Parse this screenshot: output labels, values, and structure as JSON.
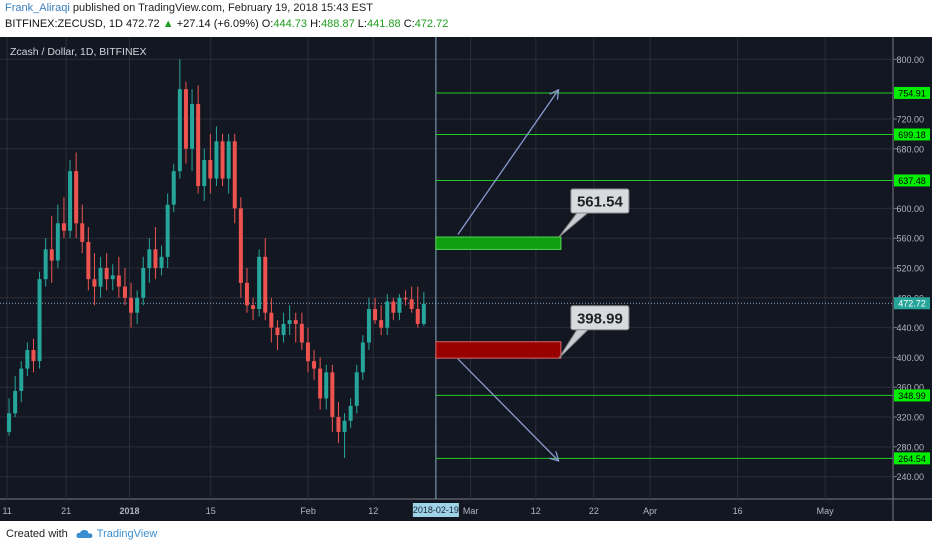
{
  "header": {
    "author": "Frank_Aliraqi",
    "published_text": "published on TradingView.com, February 19, 2018 15:43 EST",
    "symbol_line": "BITFINEX:ZECUSD, 1D",
    "last": "472.72",
    "change": "+27.14 (+6.09%)",
    "o_label": "O:",
    "o": "444.73",
    "h_label": "H:",
    "h": "488.87",
    "l_label": "L:",
    "l": "441.88",
    "c_label": "C:",
    "c": "472.72"
  },
  "footer": {
    "created_with": "Created with",
    "brand": "TradingView"
  },
  "colors": {
    "background": "#131722",
    "grid": "#2a2e39",
    "up": "#26a69a",
    "down": "#ef5350",
    "level_line": "#22cc22",
    "level_label": "#00ee00",
    "buy_zone": "#0f9e0f",
    "sell_zone": "#990000",
    "arrow": "#8a9ad0",
    "date_marker": "#9fd3e8"
  },
  "chart_data": {
    "type": "candlestick",
    "title": "Zcash / Dollar, 1D, BITFINEX",
    "ylim": [
      210,
      830
    ],
    "y_ticks": [
      "800.00",
      "720.00",
      "680.00",
      "600.00",
      "560.00",
      "520.00",
      "480.00",
      "440.00",
      "400.00",
      "360.00",
      "320.00",
      "280.00",
      "240.00"
    ],
    "x_ticks": [
      "11",
      "21",
      "2018",
      "15",
      "Feb",
      "12",
      "Mar",
      "12",
      "22",
      "Apr",
      "16",
      "May"
    ],
    "date_marker_label": "2018-02-19",
    "last_price_label": "472.72",
    "last_price": 472.72,
    "candles_ohlc": [
      [
        300,
        345,
        295,
        325
      ],
      [
        325,
        375,
        320,
        355
      ],
      [
        355,
        395,
        340,
        385
      ],
      [
        385,
        420,
        375,
        410
      ],
      [
        410,
        425,
        380,
        395
      ],
      [
        395,
        515,
        385,
        505
      ],
      [
        505,
        560,
        495,
        545
      ],
      [
        545,
        590,
        500,
        530
      ],
      [
        530,
        605,
        520,
        580
      ],
      [
        580,
        615,
        560,
        570
      ],
      [
        570,
        665,
        560,
        650
      ],
      [
        650,
        675,
        560,
        580
      ],
      [
        580,
        605,
        540,
        555
      ],
      [
        555,
        575,
        490,
        505
      ],
      [
        505,
        540,
        470,
        495
      ],
      [
        495,
        535,
        480,
        520
      ],
      [
        520,
        540,
        490,
        505
      ],
      [
        505,
        525,
        490,
        510
      ],
      [
        510,
        535,
        480,
        495
      ],
      [
        495,
        520,
        470,
        480
      ],
      [
        480,
        500,
        440,
        460
      ],
      [
        460,
        490,
        445,
        480
      ],
      [
        480,
        535,
        470,
        520
      ],
      [
        520,
        560,
        500,
        545
      ],
      [
        545,
        575,
        505,
        520
      ],
      [
        520,
        550,
        510,
        535
      ],
      [
        535,
        620,
        520,
        605
      ],
      [
        605,
        660,
        595,
        650
      ],
      [
        650,
        800,
        640,
        760
      ],
      [
        760,
        770,
        660,
        680
      ],
      [
        680,
        760,
        650,
        740
      ],
      [
        740,
        765,
        620,
        630
      ],
      [
        630,
        680,
        610,
        665
      ],
      [
        665,
        700,
        620,
        640
      ],
      [
        640,
        710,
        630,
        690
      ],
      [
        690,
        700,
        630,
        640
      ],
      [
        640,
        700,
        620,
        690
      ],
      [
        690,
        700,
        580,
        600
      ],
      [
        600,
        615,
        480,
        500
      ],
      [
        500,
        520,
        460,
        470
      ],
      [
        470,
        480,
        450,
        465
      ],
      [
        465,
        545,
        455,
        535
      ],
      [
        535,
        560,
        450,
        460
      ],
      [
        460,
        480,
        420,
        440
      ],
      [
        440,
        450,
        410,
        430
      ],
      [
        430,
        460,
        420,
        445
      ],
      [
        445,
        470,
        430,
        450
      ],
      [
        450,
        460,
        420,
        445
      ],
      [
        445,
        460,
        410,
        420
      ],
      [
        420,
        440,
        380,
        395
      ],
      [
        395,
        410,
        370,
        385
      ],
      [
        385,
        400,
        330,
        345
      ],
      [
        345,
        390,
        330,
        380
      ],
      [
        380,
        390,
        300,
        320
      ],
      [
        320,
        340,
        285,
        300
      ],
      [
        300,
        325,
        265,
        315
      ],
      [
        315,
        345,
        305,
        335
      ],
      [
        335,
        390,
        325,
        380
      ],
      [
        380,
        430,
        370,
        420
      ],
      [
        420,
        480,
        410,
        465
      ],
      [
        465,
        480,
        445,
        450
      ],
      [
        450,
        470,
        430,
        440
      ],
      [
        440,
        485,
        430,
        475
      ],
      [
        475,
        480,
        450,
        460
      ],
      [
        460,
        485,
        450,
        480
      ],
      [
        480,
        490,
        470,
        478
      ],
      [
        478,
        495,
        460,
        465
      ],
      [
        465,
        495,
        440,
        445
      ],
      [
        445,
        488,
        442,
        472
      ]
    ],
    "levels": [
      754.91,
      699.18,
      637.48,
      348.99,
      264.54
    ],
    "level_labels": [
      "754.91",
      "699.18",
      "637.48",
      "348.99",
      "264.54"
    ],
    "buy_zone": {
      "top": 561.54,
      "bottom": 545
    },
    "sell_zone": {
      "top": 421,
      "bottom": 398.99
    },
    "buy_callout": "561.54",
    "sell_callout": "398.99",
    "arrows": [
      {
        "from": [
          0,
          565
        ],
        "to": [
          1,
          758
        ]
      },
      {
        "from": [
          0,
          398
        ],
        "to": [
          1,
          262
        ]
      }
    ]
  }
}
